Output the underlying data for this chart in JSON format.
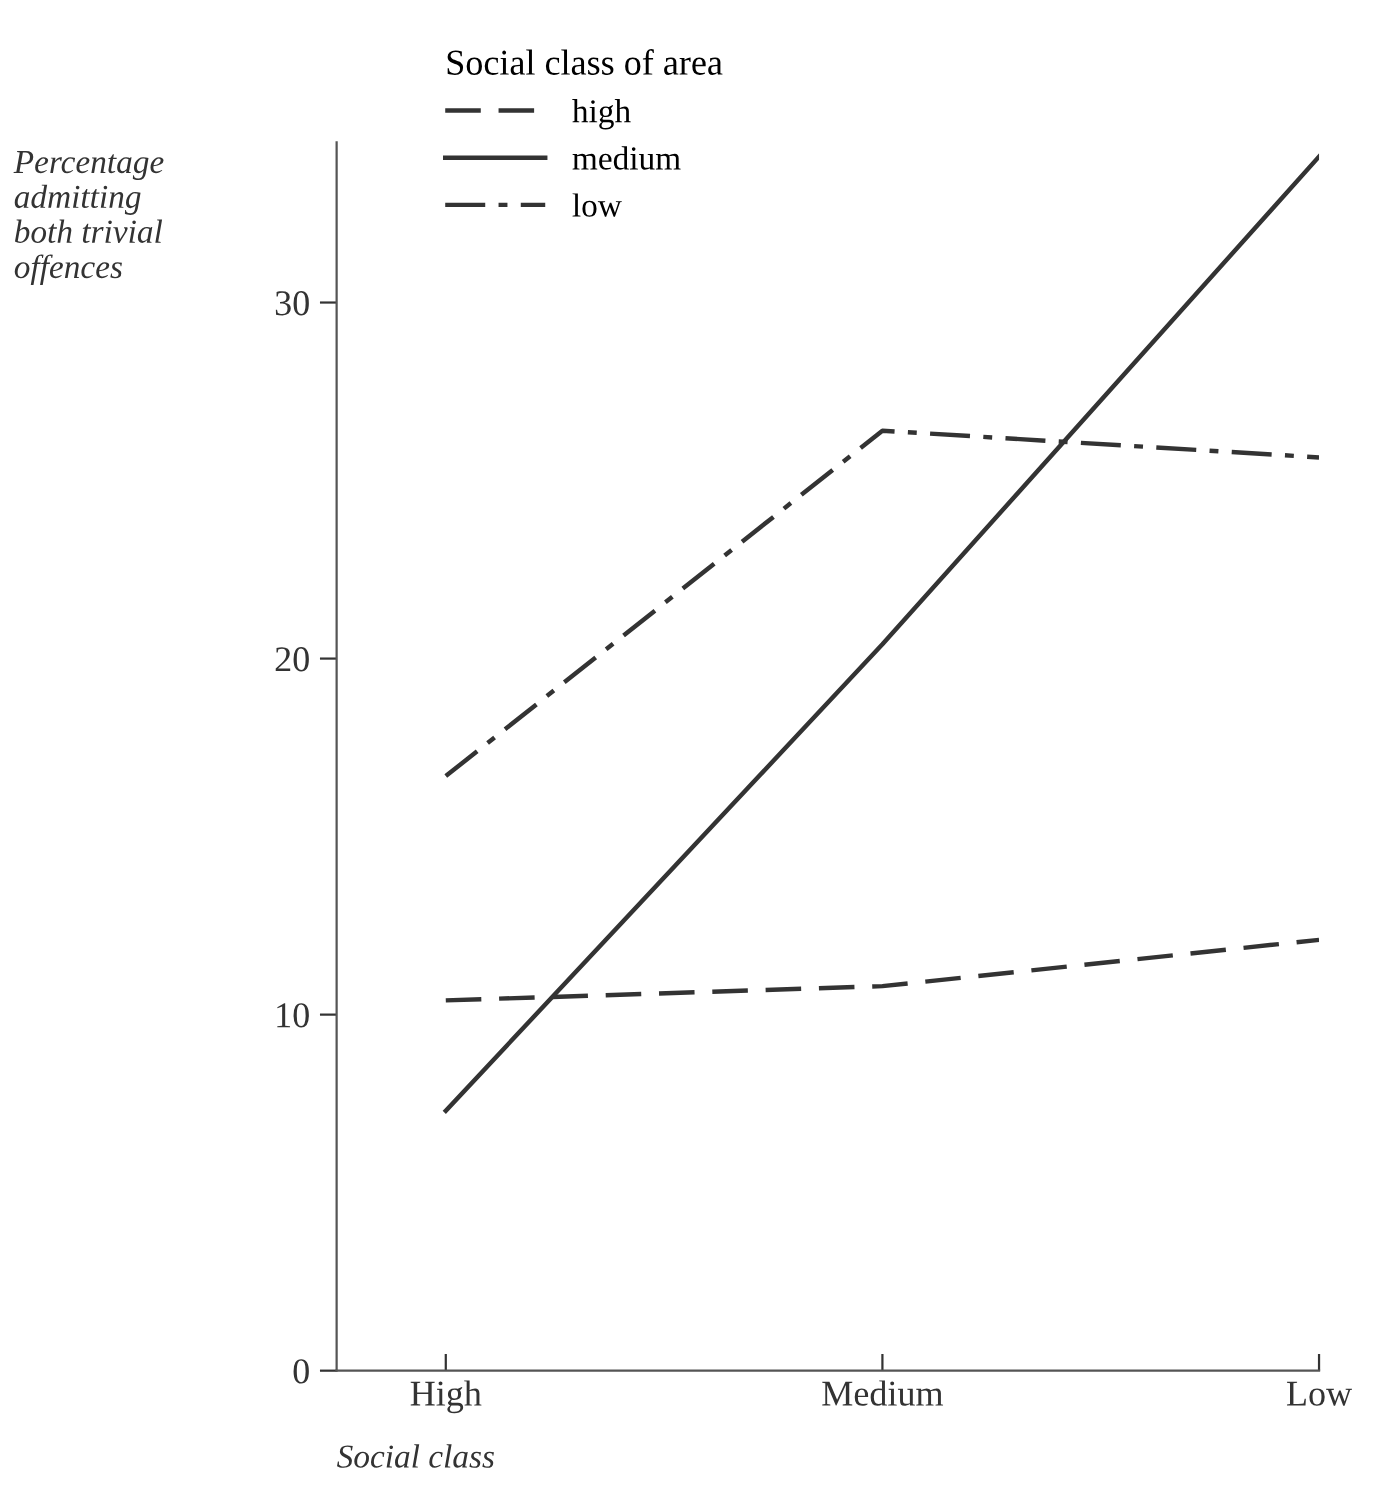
{
  "chart_data": {
    "type": "line",
    "xlabel": "Social class",
    "ylabel": "Percentage\nadmitting\nboth trivial\noffences",
    "legend_title": "Social class of area",
    "categories": [
      "High",
      "Medium",
      "Low"
    ],
    "series": [
      {
        "name": "high",
        "color": "#333333",
        "line_style": "dashed",
        "values": [
          10.4,
          10.8,
          12.1
        ]
      },
      {
        "name": "medium",
        "color": "#333333",
        "line_style": "solid",
        "values": [
          7.3,
          20.4,
          34.1
        ]
      },
      {
        "name": "low",
        "color": "#333333",
        "line_style": "dashdot",
        "values": [
          16.7,
          26.4,
          25.65
        ]
      }
    ],
    "ylim": [
      0,
      34.5
    ],
    "yticks": [
      0,
      10,
      20,
      30
    ],
    "grid": false,
    "legend": "top left",
    "marker": "none"
  }
}
